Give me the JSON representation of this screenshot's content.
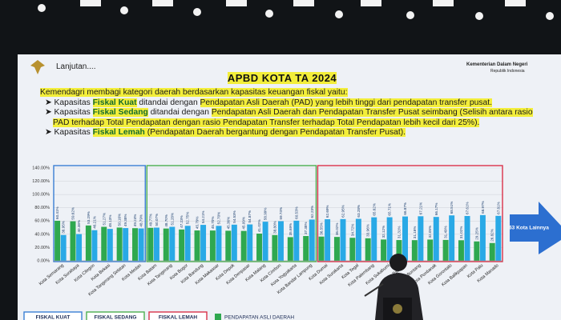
{
  "slide": {
    "section": "Lanjutan....",
    "title": "APBD KOTA TA 2024",
    "ministry": "Kementerian Dalam Negeri",
    "country": "Republik Indonesia",
    "intro": "Kemendagri membagi kategori daerah berdasarkan kapasitas keuangan fiskal yaitu:",
    "bullets": [
      [
        "Kapasitas ",
        "Fiskal Kuat",
        " ditandai dengan ",
        "Pendapatan Asli Daerah (PAD) yang lebih tinggi dari pendapatan transfer pusat."
      ],
      [
        "Kapasitas ",
        "Fiskal Sedang",
        " ditandai dengan ",
        "Pendapatan Asli Daerah dan Pendapatan Transfer Pusat seimbang (Selisih antara rasio PAD terhadap Total Pendapatan dengan rasio Pendapatan Transfer terhadap Total Pendapatan lebih kecil dari 25%)."
      ],
      [
        "Kapasitas ",
        "Fiskal Lemah",
        " (Pendapatan Daerah bergantung dengan Pendapatan Transfer Pusat)."
      ]
    ],
    "arrow_text": "63 Kota Lainnya"
  },
  "chart_data": {
    "type": "bar",
    "groups": [
      {
        "label": "FISKAL KUAT",
        "color": "#3b7fd4",
        "categories": [
          "Kota Semarang",
          "Kota Surabaya",
          "Kota Cilegon",
          "Kota Bekasi",
          "Kota Tangerang Selatan",
          "Kota Medan"
        ]
      },
      {
        "label": "FISKAL SEDANG",
        "color": "#4caf50",
        "categories": [
          "Kota Batam",
          "Kota Tangerang",
          "Kota Bogor",
          "Kota Bandung",
          "Kota Makassar",
          "Kota Depok",
          "Kota Denpasar",
          "Kota Malang",
          "Kota Cirebon",
          "Kota Yogyakarta",
          "Kota Bandar Lampung"
        ]
      },
      {
        "label": "FISKAL LEMAH",
        "color": "#d9324a",
        "categories": [
          "Kota Dumai",
          "Kota Surakarta",
          "Kota Tegal",
          "Kota Palembang",
          "Kota Sukabumi",
          "Kota Padang",
          "Kota Bontang",
          "Kota Pontianak",
          "Kota Gorontalo",
          "Kota Balikpapan",
          "Kota Palu",
          "Kota Manado"
        ]
      }
    ],
    "series": [
      {
        "name": "PENDAPATAN ASLI DAERAH",
        "color": "#2fa84f",
        "values": [
          60.41,
          59.62,
          53.29,
          51.27,
          50.16,
          49.24,
          49.77,
          48.7,
          47.23,
          45.79,
          45.7,
          45.36,
          45.09,
          41.02,
          38.8,
          35.69,
          37.38,
          36.55,
          36.02,
          34.72,
          33.96,
          32.12,
          31.31,
          31.16,
          32.05,
          31.49,
          31.02,
          29.25,
          26.82
        ],
        "value_labels": [
          "60.41%",
          "59.62%",
          "53.29%",
          "51.27%",
          "50.16%",
          "49.24%",
          "49.77%",
          "48.70%",
          "47.23%",
          "45.79%",
          "45.70%",
          "45.36%",
          "45.09%",
          "41.02%",
          "38.80%",
          "35.69%",
          "37.38%",
          "36.55%",
          "36.02%",
          "34.72%",
          "33.96%",
          "32.12%",
          "31.31%",
          "31.16%",
          "32.05%",
          "31.49%",
          "31.02%",
          "29.25%",
          "26.82%"
        ]
      },
      {
        "color": "#29a9e6",
        "values": [
          38.95,
          40.38,
          46.21,
          48.13,
          49.38,
          48.79,
          50.07,
          51.28,
          52.75,
          54.21,
          52.7,
          54.53,
          54.87,
          58.99,
          59.74,
          60.53,
          62.23,
          62.69,
          62.95,
          63.28,
          65.62,
          65.71,
          66.87,
          67.21,
          66.17,
          68.51,
          67.61,
          68.97,
          67.81
        ],
        "value_labels": [
          "38.95%",
          "40.38%",
          "46.21%",
          "48.13%",
          "49.38%",
          "48.79%",
          "50.07%",
          "51.28%",
          "52.75%",
          "54.21%",
          "52.70%",
          "54.53%",
          "54.87%",
          "58.99%",
          "59.74%",
          "60.53%",
          "62.23%",
          "62.69%",
          "62.95%",
          "63.28%",
          "65.62%",
          "65.71%",
          "66.87%",
          "67.21%",
          "66.17%",
          "68.51%",
          "67.61%",
          "68.97%",
          "67.81%"
        ]
      }
    ],
    "ylim": [
      0,
      140
    ],
    "yticks": [
      {
        "value": 0,
        "label": "0.00%"
      },
      {
        "value": 20,
        "label": "20.00%"
      },
      {
        "value": 40,
        "label": "40.00%"
      },
      {
        "value": 60,
        "label": "60.00%"
      },
      {
        "value": 80,
        "label": "80.00%"
      },
      {
        "value": 100,
        "label": "100.00%"
      },
      {
        "value": 120,
        "label": "120.00%"
      },
      {
        "value": 140,
        "label": "140.00%"
      }
    ],
    "grid": true
  }
}
